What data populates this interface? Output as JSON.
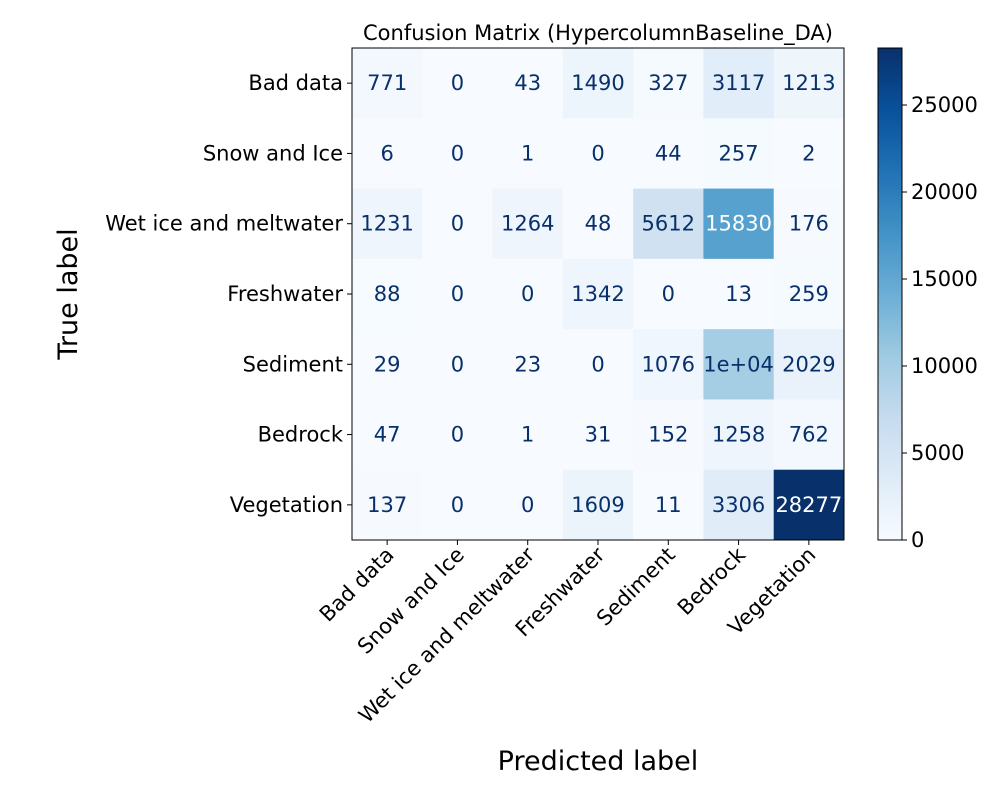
{
  "chart_data": {
    "type": "heatmap",
    "title": "Confusion Matrix (HypercolumnBaseline_DA)",
    "xlabel": "Predicted label",
    "ylabel": "True label",
    "x_categories": [
      "Bad data",
      "Snow and Ice",
      "Wet ice and meltwater",
      "Freshwater",
      "Sediment",
      "Bedrock",
      "Vegetation"
    ],
    "y_categories": [
      "Bad data",
      "Snow and Ice",
      "Wet ice and meltwater",
      "Freshwater",
      "Sediment",
      "Bedrock",
      "Vegetation"
    ],
    "values": [
      [
        771,
        0,
        43,
        1490,
        327,
        3117,
        1213
      ],
      [
        6,
        0,
        1,
        0,
        44,
        257,
        2
      ],
      [
        1231,
        0,
        1264,
        48,
        5612,
        15830,
        176
      ],
      [
        88,
        0,
        0,
        1342,
        0,
        13,
        259
      ],
      [
        29,
        0,
        23,
        0,
        1076,
        10000,
        2029
      ],
      [
        47,
        0,
        1,
        31,
        152,
        1258,
        762
      ],
      [
        137,
        0,
        0,
        1609,
        11,
        3306,
        28277
      ]
    ],
    "cell_labels": [
      [
        "771",
        "0",
        "43",
        "1490",
        "327",
        "3117",
        "1213"
      ],
      [
        "6",
        "0",
        "1",
        "0",
        "44",
        "257",
        "2"
      ],
      [
        "1231",
        "0",
        "1264",
        "48",
        "5612",
        "15830",
        "176"
      ],
      [
        "88",
        "0",
        "0",
        "1342",
        "0",
        "13",
        "259"
      ],
      [
        "29",
        "0",
        "23",
        "0",
        "1076",
        "1e+04",
        "2029"
      ],
      [
        "47",
        "0",
        "1",
        "31",
        "152",
        "1258",
        "762"
      ],
      [
        "137",
        "0",
        "0",
        "1609",
        "11",
        "3306",
        "28277"
      ]
    ],
    "colormap": "Blues",
    "colorbar": {
      "range": [
        0,
        28277
      ],
      "ticks": [
        0,
        5000,
        10000,
        15000,
        20000,
        25000
      ],
      "tick_labels": [
        "0",
        "5000",
        "10000",
        "15000",
        "20000",
        "25000"
      ]
    },
    "x_tick_rotation_deg": 45,
    "grid": false
  }
}
